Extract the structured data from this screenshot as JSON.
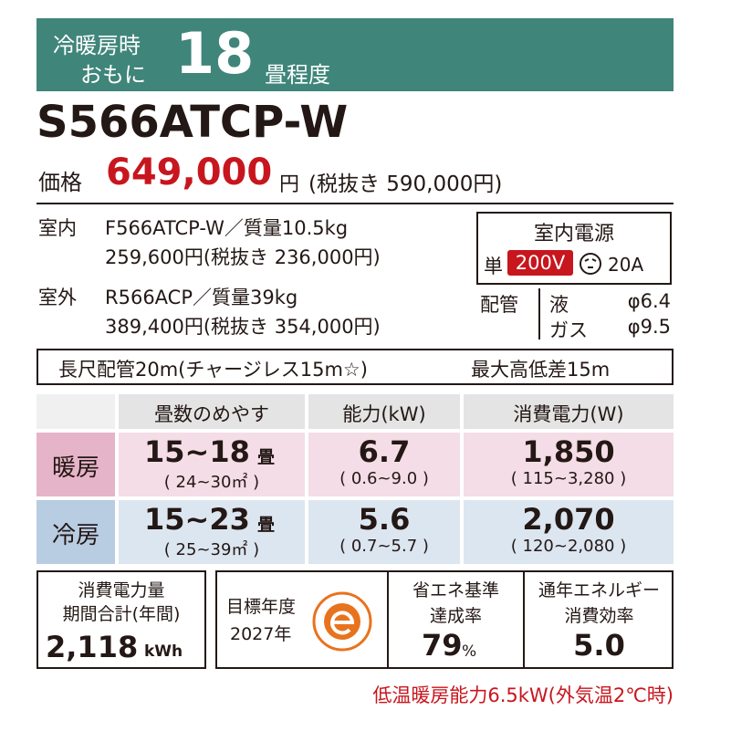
{
  "header": {
    "line1": "冷暖房時",
    "line2": "おもに",
    "size": "18",
    "unit": "畳程度"
  },
  "model": "S566ATCP-W",
  "price": {
    "label": "価格",
    "value": "649,000",
    "unit": "円",
    "tax_excluded": "(税抜き 590,000円)"
  },
  "indoor": {
    "label": "室内",
    "spec": "F566ATCP-W／質量10.5kg",
    "price": "259,600円(税抜き 236,000円)"
  },
  "outdoor": {
    "label": "室外",
    "spec": "R566ACP／質量39kg",
    "price": "389,400円(税抜き 354,000円)"
  },
  "power": {
    "title": "室内電源",
    "phase": "単",
    "voltage": "200V",
    "ampere": "20A"
  },
  "piping": {
    "label": "配管",
    "liquid_label": "液",
    "liquid": "φ6.4",
    "gas_label": "ガス",
    "gas": "φ9.5"
  },
  "pipe_note": {
    "length": "長尺配管20m(チャージレス15m☆)",
    "height": "最大高低差15m"
  },
  "table": {
    "headers": [
      "畳数のめやす",
      "能力(kW)",
      "消費電力(W)"
    ],
    "rows": [
      {
        "mode": "暖房",
        "area": "15~18",
        "area_unit": "畳",
        "area_range": "( 24~30㎡ )",
        "capacity": "6.7",
        "capacity_range": "( 0.6~9.0 )",
        "power": "1,850",
        "power_range": "( 115~3,280 )"
      },
      {
        "mode": "冷房",
        "area": "15~23",
        "area_unit": "畳",
        "area_range": "( 25~39㎡ )",
        "capacity": "5.6",
        "capacity_range": "( 0.7~5.7 )",
        "power": "2,070",
        "power_range": "( 120~2,080 )"
      }
    ]
  },
  "annual": {
    "label1": "消費電力量",
    "label2": "期間合計(年間)",
    "value": "2,118",
    "unit": "kWh"
  },
  "target": {
    "label1": "目標年度",
    "label2": "2027年"
  },
  "achievement": {
    "label1": "省エネ基準",
    "label2": "達成率",
    "value": "79",
    "unit": "%"
  },
  "apf": {
    "label1": "通年エネルギー",
    "label2": "消費効率",
    "value": "5.0"
  },
  "note": "低温暖房能力6.5kW(外気温2℃時)"
}
